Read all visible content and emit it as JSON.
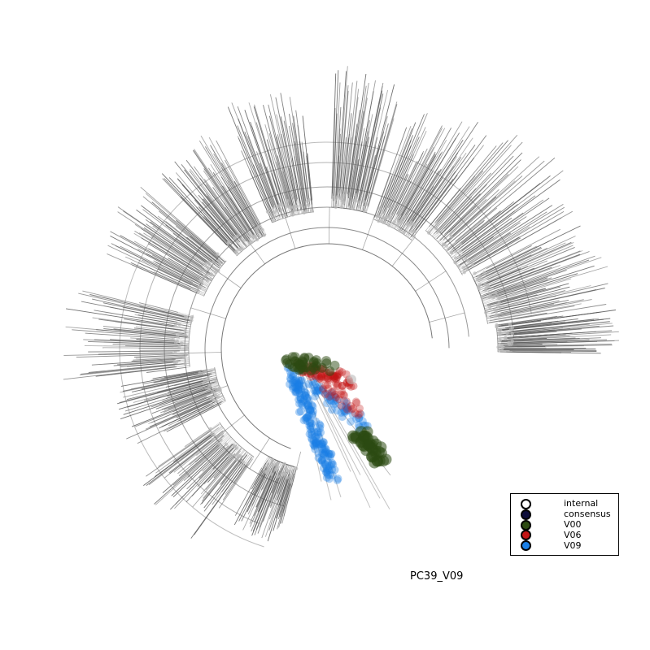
{
  "figure": {
    "label": "PC39_V09"
  },
  "legend": {
    "items": [
      {
        "label": "internal",
        "fill": "#ffffff",
        "stroke": "#000000"
      },
      {
        "label": "consensus",
        "fill": "#0d0d3a",
        "stroke": "#000000"
      },
      {
        "label": "V00",
        "fill": "#2c4a12",
        "stroke": "#000000"
      },
      {
        "label": "V06",
        "fill": "#c41515",
        "stroke": "#000000"
      },
      {
        "label": "V09",
        "fill": "#1a7fe6",
        "stroke": "#000000"
      }
    ]
  },
  "colors": {
    "branch": "#555555",
    "node": "#bbbbbb",
    "v00": "#2c4a12",
    "v06": "#c41515",
    "v09": "#1a7fe6"
  }
}
